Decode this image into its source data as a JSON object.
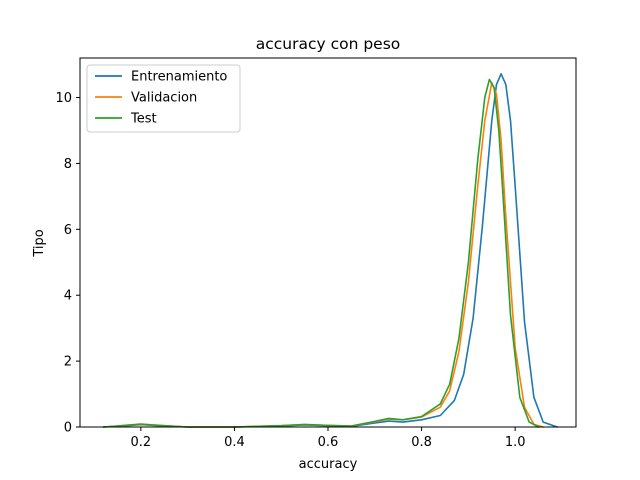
{
  "chart_data": {
    "type": "line",
    "title": "accuracy con peso",
    "xlabel": "accuracy",
    "ylabel": "Tipo",
    "xlim": [
      0.07,
      1.13
    ],
    "ylim": [
      0,
      11.2
    ],
    "xticks": [
      0.2,
      0.4,
      0.6,
      0.8,
      1.0
    ],
    "xtick_labels": [
      "0.2",
      "0.4",
      "0.6",
      "0.8",
      "1.0"
    ],
    "yticks": [
      0,
      2,
      4,
      6,
      8,
      10
    ],
    "ytick_labels": [
      "0",
      "2",
      "4",
      "6",
      "8",
      "10"
    ],
    "grid": false,
    "legend_position": "top-left",
    "series": [
      {
        "name": "Entrenamiento",
        "color": "#1f77b4",
        "x": [
          0.12,
          0.15,
          0.2,
          0.25,
          0.3,
          0.4,
          0.5,
          0.55,
          0.6,
          0.65,
          0.7,
          0.73,
          0.76,
          0.8,
          0.84,
          0.87,
          0.89,
          0.91,
          0.93,
          0.95,
          0.96,
          0.97,
          0.98,
          0.99,
          1.0,
          1.02,
          1.04,
          1.06,
          1.09
        ],
        "y": [
          0.0,
          0.02,
          0.07,
          0.03,
          0.0,
          0.0,
          0.03,
          0.06,
          0.04,
          0.02,
          0.12,
          0.18,
          0.15,
          0.22,
          0.35,
          0.8,
          1.6,
          3.3,
          6.1,
          9.3,
          10.4,
          10.72,
          10.4,
          9.3,
          7.3,
          3.2,
          0.9,
          0.15,
          0.0
        ]
      },
      {
        "name": "Validacion",
        "color": "#ff7f0e",
        "x": [
          0.12,
          0.15,
          0.2,
          0.25,
          0.3,
          0.4,
          0.5,
          0.55,
          0.6,
          0.65,
          0.7,
          0.73,
          0.76,
          0.8,
          0.84,
          0.86,
          0.88,
          0.9,
          0.92,
          0.935,
          0.95,
          0.96,
          0.97,
          0.98,
          1.0,
          1.02,
          1.04,
          1.06
        ],
        "y": [
          0.0,
          0.03,
          0.08,
          0.04,
          0.0,
          0.0,
          0.04,
          0.07,
          0.05,
          0.03,
          0.16,
          0.24,
          0.22,
          0.3,
          0.6,
          1.1,
          2.3,
          4.4,
          7.3,
          9.3,
          10.45,
          10.1,
          8.7,
          6.4,
          2.4,
          0.6,
          0.08,
          0.0
        ]
      },
      {
        "name": "Test",
        "color": "#2ca02c",
        "x": [
          0.12,
          0.15,
          0.2,
          0.25,
          0.3,
          0.4,
          0.5,
          0.55,
          0.6,
          0.65,
          0.7,
          0.73,
          0.76,
          0.8,
          0.84,
          0.86,
          0.88,
          0.9,
          0.92,
          0.935,
          0.945,
          0.955,
          0.965,
          0.975,
          0.99,
          1.01,
          1.03,
          1.05
        ],
        "y": [
          0.0,
          0.03,
          0.09,
          0.04,
          0.0,
          0.0,
          0.04,
          0.08,
          0.05,
          0.03,
          0.17,
          0.26,
          0.22,
          0.32,
          0.7,
          1.3,
          2.7,
          5.0,
          8.1,
          10.0,
          10.55,
          10.3,
          9.0,
          6.8,
          3.4,
          0.9,
          0.15,
          0.0
        ]
      }
    ]
  }
}
